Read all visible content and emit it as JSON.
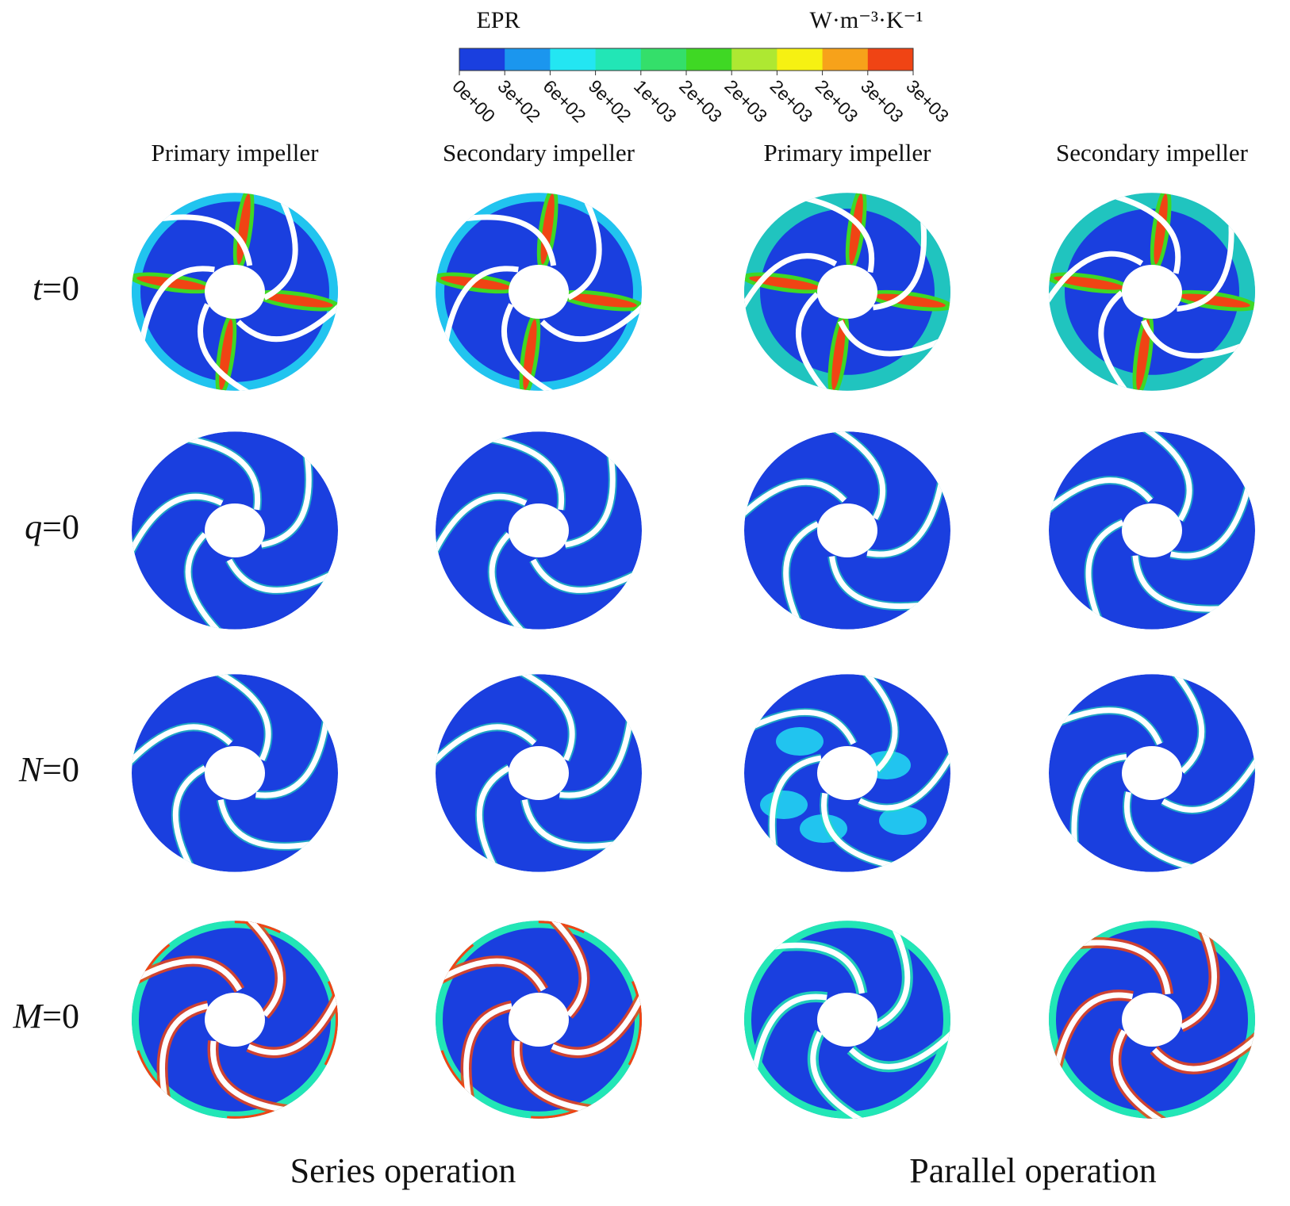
{
  "colorbar": {
    "title": "EPR",
    "unit": "W·m⁻³·K⁻¹",
    "colors": [
      "#1a3fdf",
      "#1b96ee",
      "#23e6f2",
      "#22e6b6",
      "#34df6a",
      "#3fd824",
      "#aee832",
      "#f6f112",
      "#f7a21a",
      "#f04414"
    ],
    "ticks": [
      "0e+00",
      "3e+02",
      "6e+02",
      "9e+02",
      "1e+03",
      "2e+03",
      "2e+03",
      "2e+03",
      "2e+03",
      "3e+03",
      "3e+03"
    ]
  },
  "columns": [
    "Primary impeller",
    "Secondary impeller",
    "Primary impeller",
    "Secondary impeller"
  ],
  "rows": [
    {
      "symbol": "t",
      "text": "=0"
    },
    {
      "symbol": "q",
      "text": "=0"
    },
    {
      "symbol": "N",
      "text": "=0"
    },
    {
      "symbol": "M",
      "text": "=0"
    }
  ],
  "groups": [
    "Series operation",
    "Parallel operation"
  ]
}
